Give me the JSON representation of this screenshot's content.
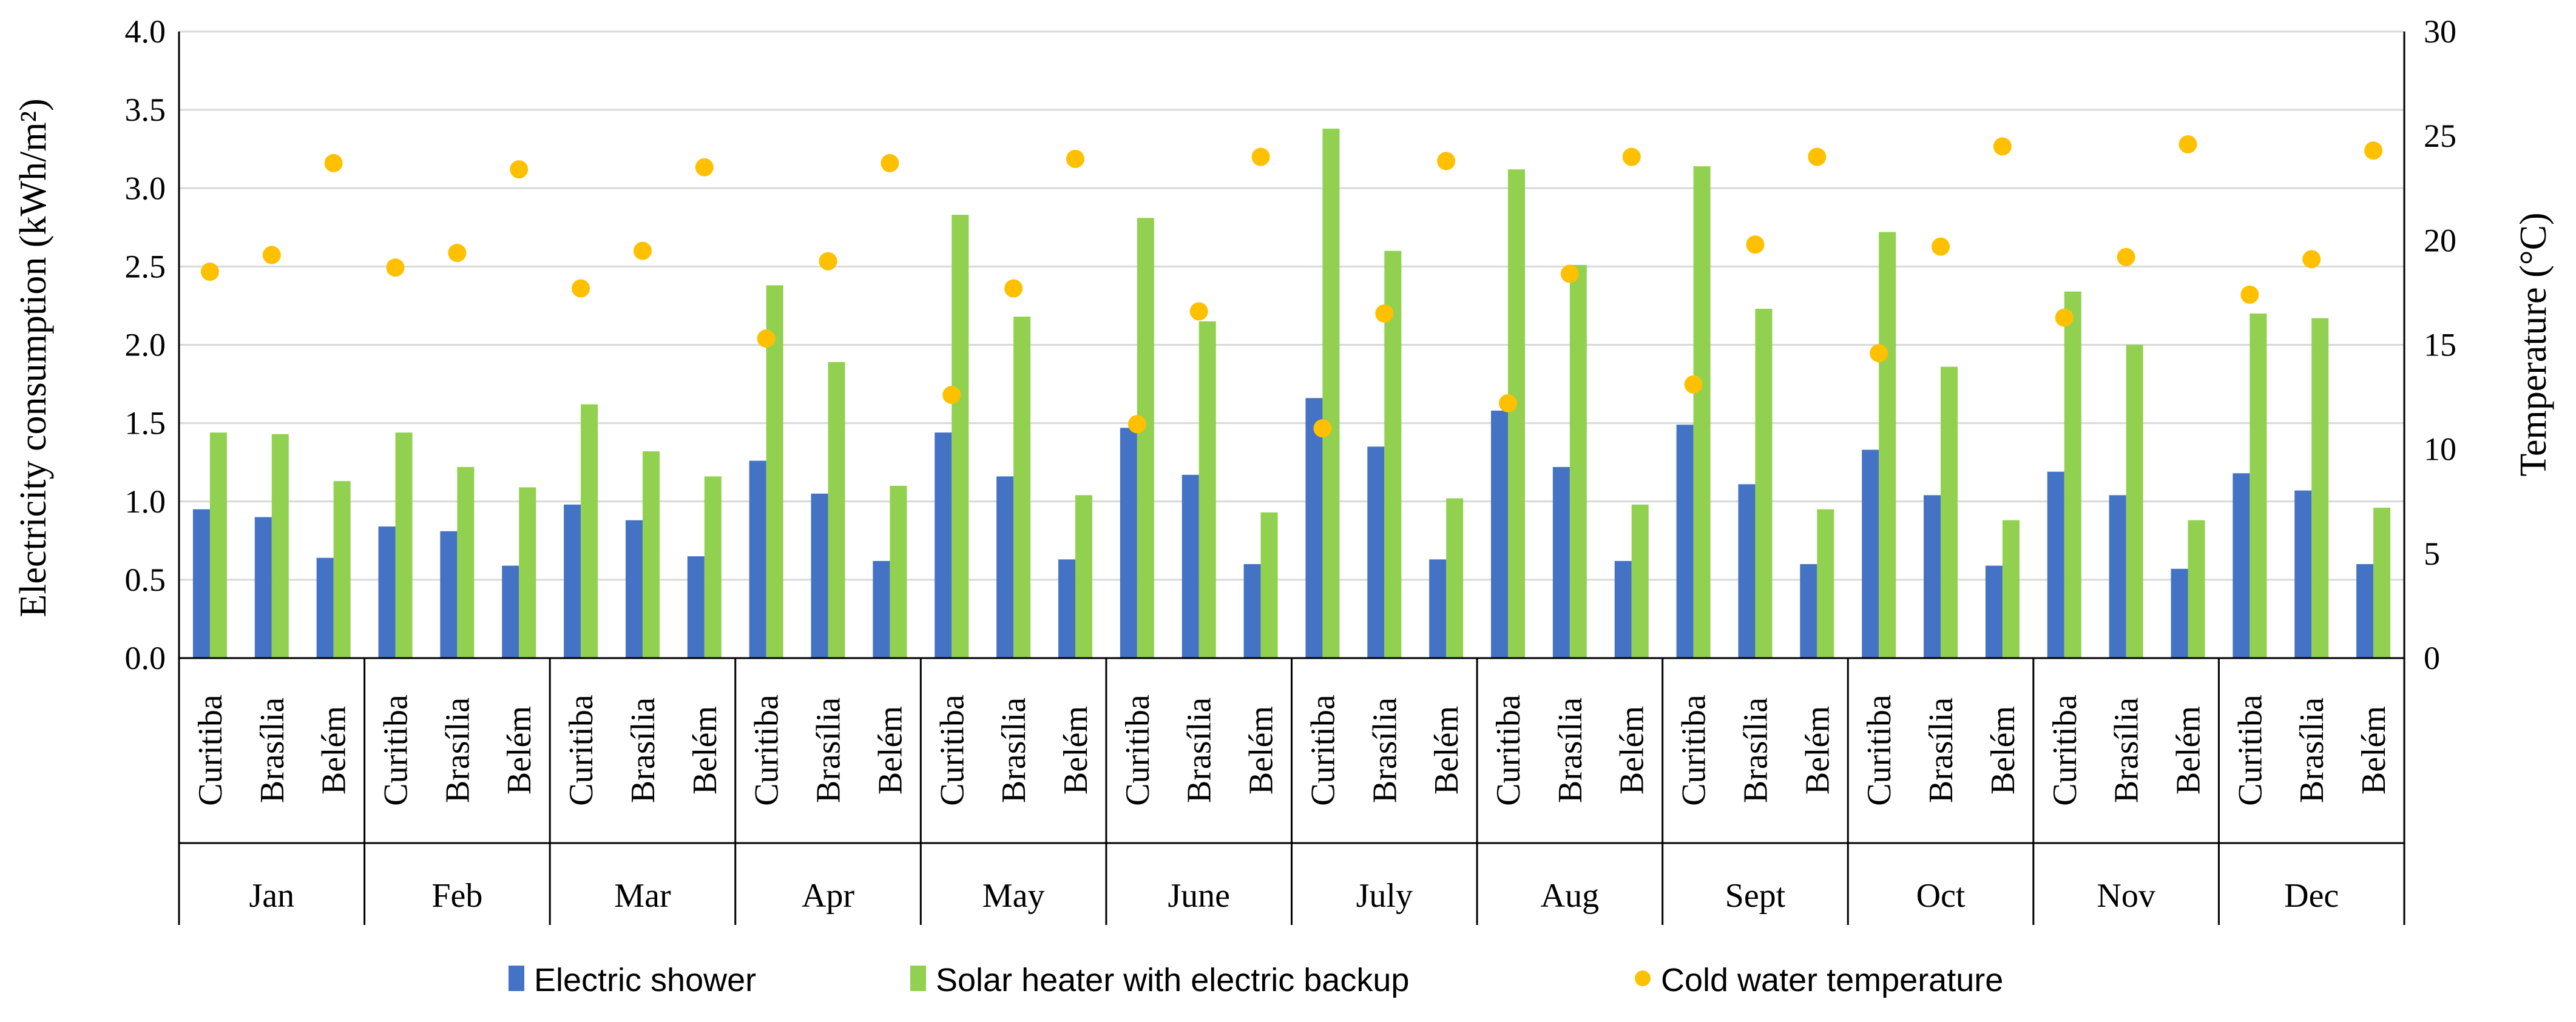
{
  "colors": {
    "electric_shower": "#4472C4",
    "solar_heater": "#92D050",
    "cold_water": "#FFC000",
    "grid": "#D9D9D9",
    "axis": "#000000"
  },
  "chart_data": {
    "type": "bar",
    "months": [
      "Jan",
      "Feb",
      "Mar",
      "Apr",
      "May",
      "June",
      "July",
      "Aug",
      "Sept",
      "Oct",
      "Nov",
      "Dec"
    ],
    "cities": [
      "Curitiba",
      "Brasília",
      "Belém"
    ],
    "ylabel": "Electricity consumption (kWh/m²)",
    "y2label": "Temperature (°C)",
    "ylim": [
      0,
      4
    ],
    "y2lim": [
      0,
      30
    ],
    "yticks": [
      "0.0",
      "0.5",
      "1.0",
      "1.5",
      "2.0",
      "2.5",
      "3.0",
      "3.5",
      "4.0"
    ],
    "y2ticks": [
      "0",
      "5",
      "10",
      "15",
      "20",
      "25",
      "30"
    ],
    "grid": true,
    "legend_position": "bottom",
    "series": [
      {
        "name": "Electric shower",
        "kind": "bar",
        "axis": "left",
        "values": [
          0.95,
          0.9,
          0.64,
          0.84,
          0.81,
          0.59,
          0.98,
          0.88,
          0.65,
          1.26,
          1.05,
          0.62,
          1.44,
          1.16,
          0.63,
          1.47,
          1.17,
          0.6,
          1.66,
          1.35,
          0.63,
          1.58,
          1.22,
          0.62,
          1.49,
          1.11,
          0.6,
          1.33,
          1.04,
          0.59,
          1.19,
          1.04,
          0.57,
          1.18,
          1.07,
          0.6
        ]
      },
      {
        "name": "Solar heater with electric backup",
        "kind": "bar",
        "axis": "left",
        "values": [
          1.44,
          1.43,
          1.13,
          1.44,
          1.22,
          1.09,
          1.62,
          1.32,
          1.16,
          2.38,
          1.89,
          1.1,
          2.83,
          2.18,
          1.04,
          2.81,
          2.15,
          0.93,
          3.38,
          2.6,
          1.02,
          3.12,
          2.51,
          0.98,
          3.14,
          2.23,
          0.95,
          2.72,
          1.86,
          0.88,
          2.34,
          2.0,
          0.88,
          2.2,
          2.17,
          0.96
        ]
      },
      {
        "name": "Cold water temperature",
        "kind": "scatter",
        "axis": "right",
        "values": [
          18.5,
          19.3,
          23.7,
          18.7,
          19.4,
          23.4,
          17.7,
          19.5,
          23.5,
          15.3,
          19.0,
          23.7,
          12.6,
          17.7,
          23.9,
          11.2,
          16.6,
          24.0,
          11.0,
          16.5,
          23.8,
          12.2,
          18.4,
          24.0,
          13.1,
          19.8,
          24.0,
          14.6,
          19.7,
          24.5,
          16.3,
          19.2,
          24.6,
          17.4,
          19.1,
          24.3
        ]
      }
    ]
  }
}
